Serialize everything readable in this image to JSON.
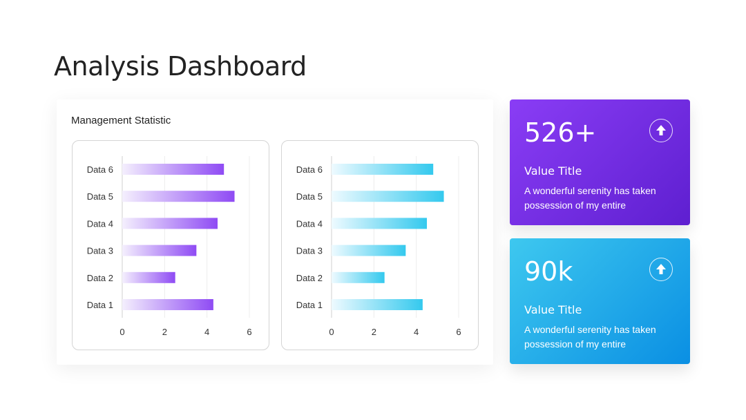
{
  "page": {
    "title": "Analysis Dashboard"
  },
  "panel": {
    "title": "Management Statistic"
  },
  "chart_data": [
    {
      "type": "bar",
      "orientation": "horizontal",
      "categories": [
        "Data 6",
        "Data 5",
        "Data 4",
        "Data 3",
        "Data 2",
        "Data 1"
      ],
      "values": [
        4.8,
        5.3,
        4.5,
        3.5,
        2.5,
        4.3
      ],
      "xlim": [
        0,
        6
      ],
      "xticks": [
        0,
        2,
        4,
        6
      ],
      "grid": true,
      "colors": {
        "start": "#f4effd",
        "end": "#8f4bf4"
      }
    },
    {
      "type": "bar",
      "orientation": "horizontal",
      "categories": [
        "Data 6",
        "Data 5",
        "Data 4",
        "Data 3",
        "Data 2",
        "Data 1"
      ],
      "values": [
        4.8,
        5.3,
        4.5,
        3.5,
        2.5,
        4.3
      ],
      "xlim": [
        0,
        6
      ],
      "xticks": [
        0,
        2,
        4,
        6
      ],
      "grid": true,
      "colors": {
        "start": "#eefaff",
        "end": "#34c9ee"
      }
    }
  ],
  "cards": [
    {
      "value": "526+",
      "title": "Value Title",
      "desc": "A wonderful serenity has taken possession of my entire",
      "icon": "arrow-up-icon"
    },
    {
      "value": "90k",
      "title": "Value Title",
      "desc": "A wonderful serenity has taken possession of my entire",
      "icon": "arrow-up-icon"
    }
  ]
}
